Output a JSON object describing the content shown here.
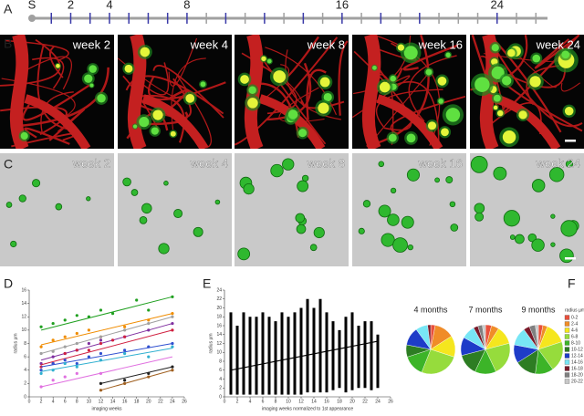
{
  "panel_labels": [
    "A",
    "B",
    "C",
    "D",
    "E",
    "F"
  ],
  "images": {
    "in_vivo": [
      "week 2",
      "week 4",
      "week 8",
      "week 16",
      "week 24"
    ],
    "rendered": [
      "week 2",
      "week 4",
      "week 8",
      "week 16",
      "week 24"
    ]
  },
  "chart_data": [
    {
      "type": "timeline",
      "xlim": [
        0,
        26.6
      ],
      "xticks": [
        {
          "value": 0,
          "label": "S"
        },
        2,
        4,
        8,
        16,
        24
      ],
      "minor_ticks": [
        1,
        2,
        3,
        4,
        5,
        6,
        7,
        8,
        9,
        10,
        11,
        12,
        13,
        14,
        15,
        16,
        17,
        18,
        19,
        20,
        21,
        22,
        23,
        24,
        25,
        26
      ],
      "imaging_weeks": [
        1,
        2,
        3,
        4,
        5,
        6,
        7,
        8,
        10,
        12,
        14,
        16,
        18,
        20,
        24
      ],
      "color": "#a0a0a0",
      "imaging_color": "#3a3aa8"
    },
    {
      "type": "scatter",
      "xlabel": "imaging weeks",
      "ylabel": "radius µm",
      "xlim": [
        0,
        26
      ],
      "ylim": [
        0,
        16
      ],
      "xticks": [
        0,
        2,
        4,
        6,
        8,
        10,
        12,
        14,
        16,
        18,
        20,
        22,
        24,
        26
      ],
      "yticks": [
        0,
        2,
        4,
        6,
        8,
        10,
        12,
        14,
        16
      ],
      "series": [
        {
          "color": "#20a020",
          "x": [
            2,
            4,
            6,
            8,
            10,
            12,
            14,
            18,
            20,
            24
          ],
          "values": [
            10.5,
            11,
            11.5,
            12.2,
            12,
            13,
            12.5,
            14.5,
            13,
            15
          ],
          "fit_x": [
            2,
            24
          ],
          "fit_values": [
            10,
            15
          ]
        },
        {
          "color": "#f08c00",
          "x": [
            2,
            4,
            6,
            8,
            10,
            12,
            16,
            20,
            24
          ],
          "values": [
            7.5,
            8.5,
            9,
            9.5,
            10,
            9,
            10.5,
            11.5,
            12.5
          ],
          "fit_x": [
            2,
            24
          ],
          "fit_values": [
            7.8,
            12.5
          ]
        },
        {
          "color": "#a0a0a0",
          "x": [
            2,
            4,
            6,
            8,
            12,
            16,
            20,
            24
          ],
          "values": [
            6.5,
            6.8,
            7.5,
            8,
            9,
            10,
            11,
            12
          ],
          "fit_x": [
            2,
            24
          ],
          "fit_values": [
            6.5,
            12
          ]
        },
        {
          "color": "#8030a0",
          "x": [
            2,
            4,
            6,
            8,
            10,
            12,
            16,
            20,
            24
          ],
          "values": [
            5,
            6,
            6.5,
            7,
            8,
            8.5,
            9,
            10,
            11
          ],
          "fit_x": [
            2,
            24
          ],
          "fit_values": [
            5.5,
            11
          ]
        },
        {
          "color": "#d02040",
          "x": [
            2,
            4,
            6,
            8,
            10,
            12,
            14,
            16,
            24
          ],
          "values": [
            4.5,
            5,
            6.5,
            7,
            7,
            8,
            8.5,
            9,
            10
          ],
          "fit_x": [
            2,
            24
          ],
          "fit_values": [
            4.8,
            10
          ]
        },
        {
          "color": "#3050d0",
          "x": [
            2,
            4,
            6,
            8,
            10,
            12,
            16,
            20,
            24
          ],
          "values": [
            4,
            5,
            5.5,
            5,
            6,
            6.5,
            7,
            7.5,
            8
          ],
          "fit_x": [
            2,
            24
          ],
          "fit_values": [
            4.5,
            8
          ]
        },
        {
          "color": "#30b0d0",
          "x": [
            2,
            4,
            6,
            8,
            12,
            16,
            20,
            24
          ],
          "values": [
            3.5,
            4,
            5,
            4.5,
            5.5,
            6.5,
            6,
            7.5
          ],
          "fit_x": [
            2,
            24
          ],
          "fit_values": [
            3.8,
            7.3
          ]
        },
        {
          "color": "#e070e0",
          "x": [
            2,
            4,
            6,
            8,
            12
          ],
          "values": [
            1.5,
            2.5,
            3,
            3.5,
            3.5
          ],
          "fit_x": [
            2,
            24
          ],
          "fit_values": [
            1.5,
            6
          ]
        },
        {
          "color": "#202020",
          "x": [
            12,
            16,
            20,
            24
          ],
          "values": [
            2,
            2.5,
            3.5,
            4.5
          ],
          "fit_x": [
            12,
            24
          ],
          "fit_values": [
            2,
            4.5
          ]
        },
        {
          "color": "#a06020",
          "x": [
            12,
            16,
            20,
            24
          ],
          "values": [
            1,
            2,
            3,
            4
          ],
          "fit_x": [
            12,
            24
          ],
          "fit_values": [
            1,
            4
          ]
        }
      ]
    },
    {
      "type": "strip",
      "xlabel": "imaging weeks normalized to 1st appearance",
      "ylabel": "radius µm",
      "xlim": [
        0,
        26
      ],
      "ylim": [
        0,
        24
      ],
      "xticks": [
        0,
        2,
        4,
        6,
        8,
        10,
        12,
        14,
        16,
        18,
        20,
        22,
        24,
        26
      ],
      "yticks": [
        0,
        2,
        4,
        6,
        8,
        10,
        12,
        14,
        16,
        18,
        20,
        22,
        24
      ],
      "x": [
        1,
        2,
        3,
        4,
        5,
        6,
        7,
        8,
        9,
        10,
        11,
        12,
        13,
        14,
        15,
        16,
        17,
        18,
        19,
        20,
        21,
        22,
        23,
        24
      ],
      "low": [
        0.5,
        0.5,
        0.5,
        0.5,
        0.5,
        0.5,
        0.5,
        0.5,
        0.5,
        0.5,
        0.5,
        0.5,
        1,
        1,
        1,
        1,
        1.5,
        2,
        1,
        1.5,
        2,
        2,
        1.5,
        2
      ],
      "high": [
        19,
        16,
        19,
        18,
        18,
        19,
        18,
        17,
        19,
        18,
        19,
        20,
        22,
        20,
        22,
        19,
        17,
        15,
        18,
        19,
        16,
        17,
        17,
        14
      ],
      "color": "#000000",
      "fit_x": [
        1,
        24
      ],
      "fit_values": [
        6,
        12.5
      ]
    },
    {
      "type": "pie",
      "legend_title": "radius µm",
      "categories": [
        "0-2",
        "2-4",
        "4-6",
        "6-8",
        "8-10",
        "10-12",
        "12-14",
        "14-16",
        "16-18",
        "18-20",
        "20-22"
      ],
      "colors": [
        "#e8503c",
        "#f08c28",
        "#f5e61e",
        "#96dc3c",
        "#3cb428",
        "#2d7d23",
        "#1e3cc8",
        "#78e6f5",
        "#7a1a2a",
        "#808080",
        "#c8c8c8"
      ],
      "series": [
        {
          "name": "4 months",
          "values": [
            3,
            13,
            14,
            26,
            14,
            8,
            12,
            8,
            2,
            0,
            0
          ]
        },
        {
          "name": "7 months",
          "values": [
            4,
            5,
            12,
            22,
            14,
            14,
            12,
            9,
            3,
            3,
            2
          ]
        },
        {
          "name": "9 months",
          "values": [
            3,
            3,
            14,
            20,
            12,
            14,
            12,
            12,
            4,
            4,
            2
          ]
        }
      ]
    }
  ]
}
